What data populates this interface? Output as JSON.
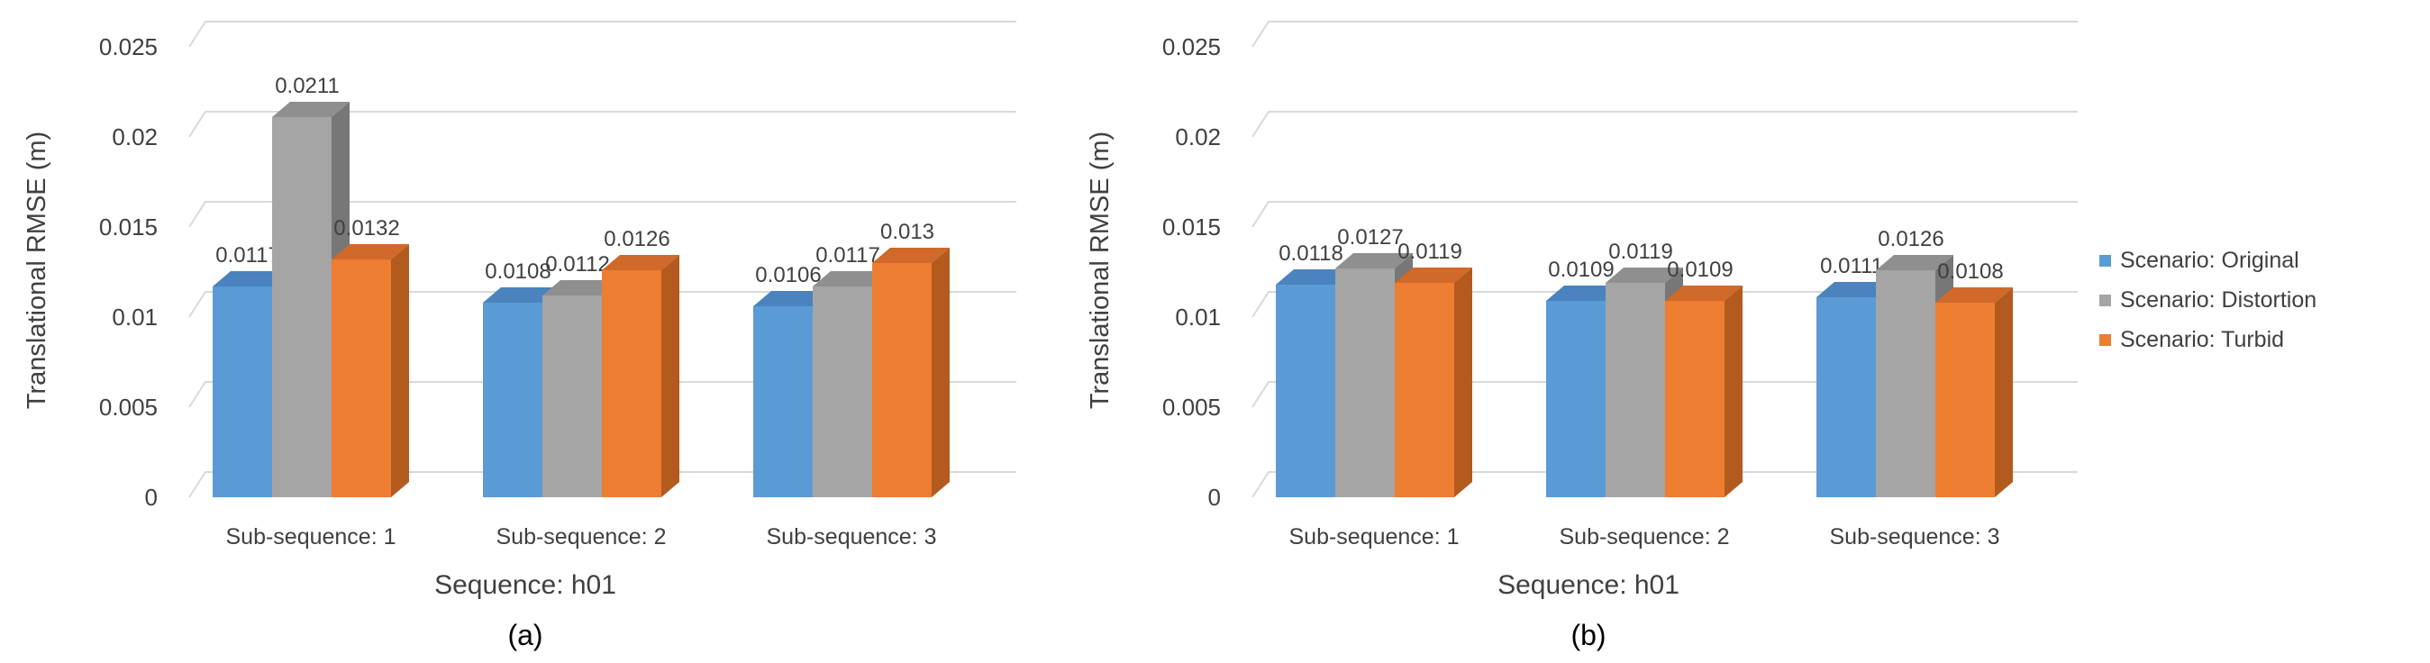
{
  "colors": {
    "original": "#5B9BD5",
    "original_side": "#3D76AB",
    "original_top": "#4A83BE",
    "distortion": "#A5A5A5",
    "distortion_side": "#777777",
    "distortion_top": "#8F8F8F",
    "turbid": "#ED7D31",
    "turbid_side": "#B35A1F",
    "turbid_top": "#D0692A",
    "grid": "#D9D9D9",
    "text": "#404040",
    "caption": "#000000"
  },
  "legend": {
    "items": [
      {
        "label": "Scenario: Original",
        "color_key": "original"
      },
      {
        "label": "Scenario: Distortion",
        "color_key": "distortion"
      },
      {
        "label": "Scenario: Turbid",
        "color_key": "turbid"
      }
    ]
  },
  "chart_data": [
    {
      "type": "bar",
      "style": "3d-clustered",
      "caption": "(a)",
      "xlabel": "Sequence: h01",
      "ylabel": "Translational RMSE (m)",
      "ylim": [
        0,
        0.025
      ],
      "yticks": [
        "0",
        "0.005",
        "0.01",
        "0.015",
        "0.02",
        "0.025"
      ],
      "categories": [
        "Sub-sequence: 1",
        "Sub-sequence: 2",
        "Sub-sequence: 3"
      ],
      "series": [
        {
          "name": "Scenario: Original",
          "values": [
            0.0117,
            0.0108,
            0.0106
          ],
          "labels": [
            "0.0117",
            "0.0108",
            "0.0106"
          ]
        },
        {
          "name": "Scenario: Distortion",
          "values": [
            0.0211,
            0.0112,
            0.0117
          ],
          "labels": [
            "0.0211",
            "0.0112",
            "0.0117"
          ]
        },
        {
          "name": "Scenario: Turbid",
          "values": [
            0.0132,
            0.0126,
            0.013
          ],
          "labels": [
            "0.0132",
            "0.0126",
            "0.013"
          ]
        }
      ]
    },
    {
      "type": "bar",
      "style": "3d-clustered",
      "caption": "(b)",
      "xlabel": "Sequence: h01",
      "ylabel": "Translational RMSE (m)",
      "ylim": [
        0,
        0.025
      ],
      "yticks": [
        "0",
        "0.005",
        "0.01",
        "0.015",
        "0.02",
        "0.025"
      ],
      "categories": [
        "Sub-sequence: 1",
        "Sub-sequence: 2",
        "Sub-sequence: 3"
      ],
      "series": [
        {
          "name": "Scenario: Original",
          "values": [
            0.0118,
            0.0109,
            0.0111
          ],
          "labels": [
            "0.0118",
            "0.0109",
            "0.0111"
          ]
        },
        {
          "name": "Scenario: Distortion",
          "values": [
            0.0127,
            0.0119,
            0.0126
          ],
          "labels": [
            "0.0127",
            "0.0119",
            "0.0126"
          ]
        },
        {
          "name": "Scenario: Turbid",
          "values": [
            0.0119,
            0.0109,
            0.0108
          ],
          "labels": [
            "0.0119",
            "0.0109",
            "0.0108"
          ]
        }
      ]
    }
  ]
}
